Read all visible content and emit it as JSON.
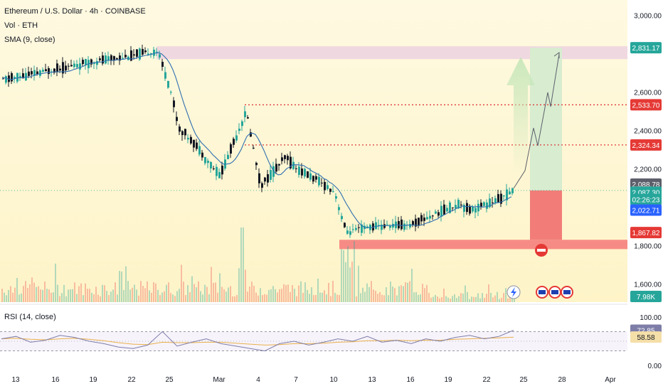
{
  "header": {
    "symbol_line": "Ethereum / U.S. Dollar · 4h · COINBASE",
    "volume_line": "Vol · ETH",
    "sma_line": "SMA (9, close)",
    "rsi_line": "RSI (14, close)"
  },
  "colors": {
    "up": "#26a69a",
    "down": "#131722",
    "sma": "#2f6fb0",
    "background_upper": "#fef9e1",
    "background_lower": "#fef4c8",
    "resistance_zone": "#f0d8e0",
    "target_zone": "#d8ecd0",
    "stop_zone": "#f27d78",
    "support_zone": "#f68b85",
    "level_line": "#e03a3a",
    "rsi_line": "#7d7da8",
    "rsi_ma": "#e8b04a"
  },
  "chart_data": [
    {
      "type": "candlestick",
      "title": "Ethereum / U.S. Dollar · 4h · COINBASE",
      "y_axis_ticks": [
        "3,000.00",
        "2,600.00",
        "2,400.00",
        "2,200.00",
        "1,800.00",
        "1,600.00"
      ],
      "y_axis_values": [
        3000,
        2600,
        2400,
        2200,
        1800,
        1600
      ],
      "ylim": [
        1505,
        3080
      ],
      "x_axis_ticks": [
        "13",
        "16",
        "19",
        "22",
        "25",
        "Mar",
        "4",
        "7",
        "10",
        "13",
        "16",
        "19",
        "22",
        "25",
        "28",
        "Apr"
      ],
      "price_path": [
        {
          "x": "13",
          "y": 2660
        },
        {
          "x": "16",
          "y": 2720
        },
        {
          "x": "19",
          "y": 2760
        },
        {
          "x": "22",
          "y": 2790
        },
        {
          "x": "24",
          "y": 2815
        },
        {
          "x": "25",
          "y": 2620
        },
        {
          "x": "26",
          "y": 2410
        },
        {
          "x": "27",
          "y": 2340
        },
        {
          "x": "28",
          "y": 2220
        },
        {
          "x": "Mar",
          "y": 2165
        },
        {
          "x": "2",
          "y": 2500
        },
        {
          "x": "4",
          "y": 2110
        },
        {
          "x": "6",
          "y": 2260
        },
        {
          "x": "7",
          "y": 2200
        },
        {
          "x": "9",
          "y": 2150
        },
        {
          "x": "10",
          "y": 2080
        },
        {
          "x": "11",
          "y": 1870
        },
        {
          "x": "13",
          "y": 1900
        },
        {
          "x": "16",
          "y": 1910
        },
        {
          "x": "19",
          "y": 2020
        },
        {
          "x": "21",
          "y": 1985
        },
        {
          "x": "23",
          "y": 2040
        },
        {
          "x": "24",
          "y": 2087.3
        }
      ],
      "levels": [
        {
          "label": "2,831.17",
          "value": 2831.17,
          "kind": "target"
        },
        {
          "label": "2,533.70",
          "value": 2533.7,
          "kind": "resistance"
        },
        {
          "label": "2,324.34",
          "value": 2324.34,
          "kind": "resistance"
        },
        {
          "label": "2,088.78",
          "value": 2088.78,
          "kind": "sma"
        },
        {
          "label": "2,087.30",
          "value": 2087.3,
          "kind": "last"
        },
        {
          "label": "02:26:23",
          "kind": "countdown"
        },
        {
          "label": "2,022.71",
          "value": 2022.71,
          "kind": "entry"
        },
        {
          "label": "1,867.82",
          "value": 1867.82,
          "kind": "stop"
        }
      ],
      "volume_label": "7.98K"
    },
    {
      "type": "line",
      "title": "RSI (14, close)",
      "y_axis_ticks": [
        "100.00",
        "0.00"
      ],
      "ylim": [
        0,
        100
      ],
      "upper_band": 70,
      "lower_band": 30,
      "series": [
        {
          "name": "RSI",
          "values": [
            55,
            60,
            48,
            52,
            62,
            58,
            50,
            45,
            38,
            35,
            42,
            70,
            40,
            48,
            55,
            45,
            40,
            35,
            30,
            45,
            50,
            42,
            48,
            55,
            50,
            60,
            48,
            52,
            45,
            55,
            50,
            58,
            62,
            55,
            60,
            72.85
          ]
        },
        {
          "name": "RSI MA",
          "values": [
            55,
            56,
            54,
            53,
            55,
            56,
            54,
            51,
            47,
            44,
            43,
            48,
            47,
            47,
            48,
            48,
            46,
            44,
            42,
            43,
            45,
            45,
            46,
            48,
            49,
            51,
            51,
            52,
            51,
            52,
            52,
            54,
            55,
            56,
            57,
            58.58
          ]
        }
      ],
      "labels": {
        "rsi": "72.85",
        "rsi_ma": "58.58"
      }
    }
  ]
}
